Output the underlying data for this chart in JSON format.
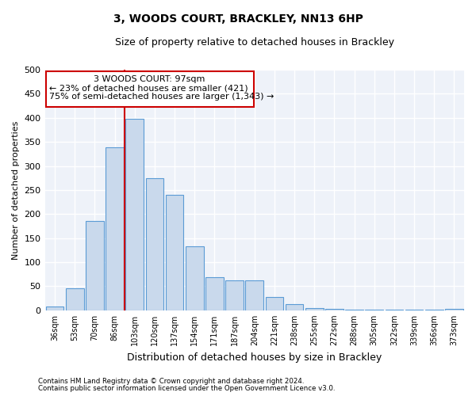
{
  "title": "3, WOODS COURT, BRACKLEY, NN13 6HP",
  "subtitle": "Size of property relative to detached houses in Brackley",
  "xlabel": "Distribution of detached houses by size in Brackley",
  "ylabel": "Number of detached properties",
  "categories": [
    "36sqm",
    "53sqm",
    "70sqm",
    "86sqm",
    "103sqm",
    "120sqm",
    "137sqm",
    "154sqm",
    "171sqm",
    "187sqm",
    "204sqm",
    "221sqm",
    "238sqm",
    "255sqm",
    "272sqm",
    "288sqm",
    "305sqm",
    "322sqm",
    "339sqm",
    "356sqm",
    "373sqm"
  ],
  "values": [
    8,
    45,
    185,
    338,
    398,
    275,
    240,
    133,
    68,
    63,
    62,
    27,
    13,
    5,
    3,
    2,
    1,
    1,
    1,
    1,
    3
  ],
  "bar_color": "#c9d9ec",
  "bar_edge_color": "#5b9bd5",
  "bar_edge_width": 0.8,
  "vline_color": "#cc0000",
  "annotation_line1": "3 WOODS COURT: 97sqm",
  "annotation_line2": "← 23% of detached houses are smaller (421)",
  "annotation_line3": "75% of semi-detached houses are larger (1,343) →",
  "annotation_box_color": "#cc0000",
  "background_color": "#eef2f9",
  "grid_color": "#ffffff",
  "ylim": [
    0,
    500
  ],
  "yticks": [
    0,
    50,
    100,
    150,
    200,
    250,
    300,
    350,
    400,
    450,
    500
  ],
  "footer_line1": "Contains HM Land Registry data © Crown copyright and database right 2024.",
  "footer_line2": "Contains public sector information licensed under the Open Government Licence v3.0."
}
